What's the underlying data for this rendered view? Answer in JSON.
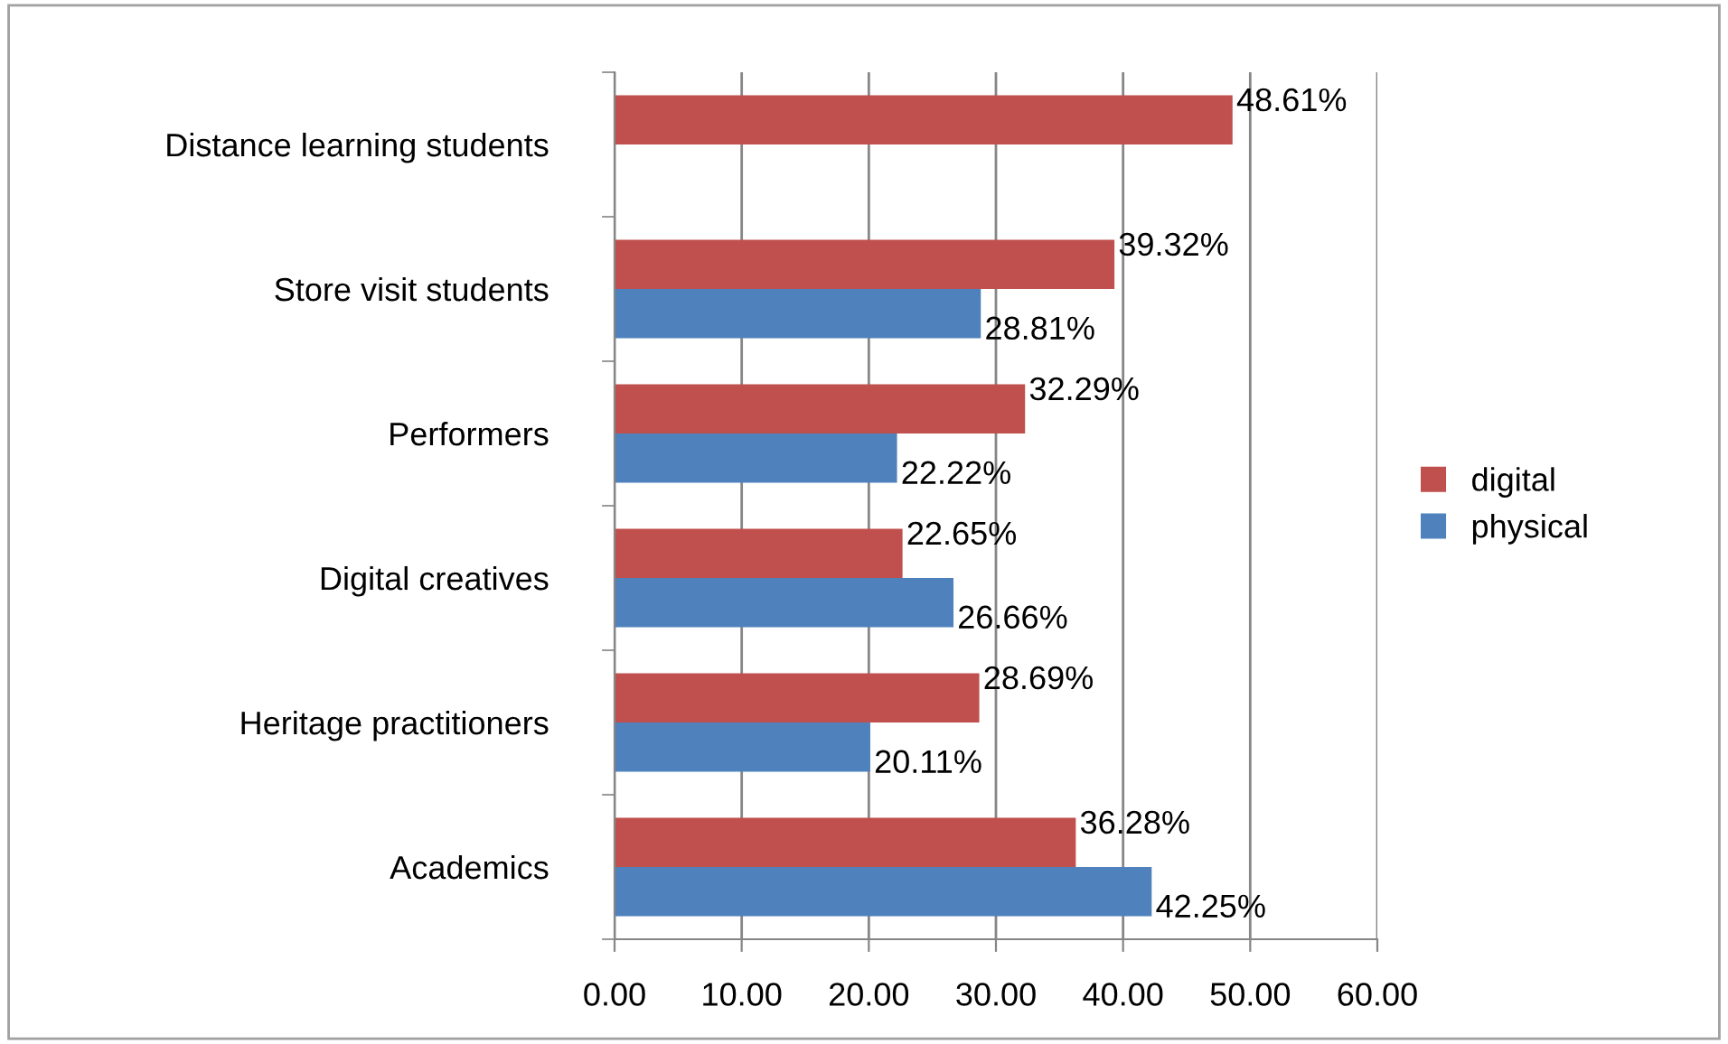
{
  "chart_data": {
    "type": "bar",
    "orientation": "horizontal",
    "categories": [
      "Distance learning students",
      "Store visit students",
      "Performers",
      "Digital creatives",
      "Heritage practitioners",
      "Academics"
    ],
    "series": [
      {
        "name": "digital",
        "color": "#c0504d",
        "values": [
          48.61,
          39.32,
          32.29,
          22.65,
          28.69,
          36.28
        ],
        "value_labels": [
          "48.61%",
          "39.32%",
          "32.29%",
          "22.65%",
          "28.69%",
          "36.28%"
        ]
      },
      {
        "name": "physical",
        "color": "#4f81bd",
        "values": [
          null,
          28.81,
          22.22,
          26.66,
          20.11,
          42.25
        ],
        "value_labels": [
          null,
          "28.81%",
          "22.22%",
          "26.66%",
          "20.11%",
          "42.25%"
        ]
      }
    ],
    "xlim": [
      0,
      60
    ],
    "xticks": [
      {
        "value": 0,
        "label": "0.00"
      },
      {
        "value": 10,
        "label": "10.00"
      },
      {
        "value": 20,
        "label": "20.00"
      },
      {
        "value": 30,
        "label": "30.00"
      },
      {
        "value": 40,
        "label": "40.00"
      },
      {
        "value": 50,
        "label": "50.00"
      },
      {
        "value": 60,
        "label": "60.00"
      }
    ],
    "grid": "x",
    "legend": "right"
  }
}
